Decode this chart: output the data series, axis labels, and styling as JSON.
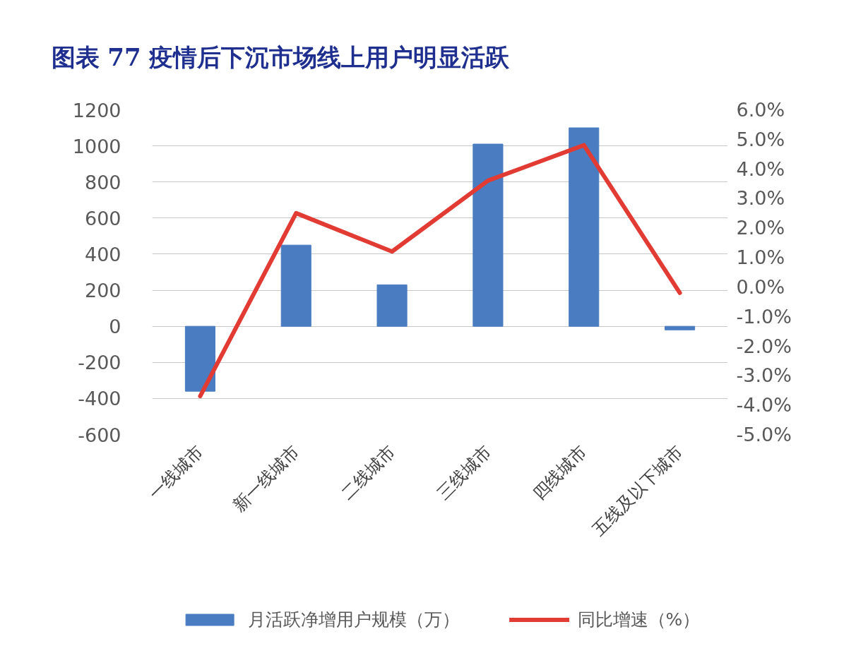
{
  "chart_data": {
    "type": "bar",
    "title": "图表 77 疫情后下沉市场线上用户明显活跃",
    "categories": [
      "一线城市",
      "新一线城市",
      "二线城市",
      "三线城市",
      "四线城市",
      "五线及以下城市"
    ],
    "series": [
      {
        "name": "月活跃净增用户规模（万）",
        "color": "#4a7cc1",
        "values": [
          -360,
          450,
          230,
          1010,
          1100,
          -20
        ]
      },
      {
        "name": "同比增速（%）",
        "type": "line",
        "axis": "y2",
        "color": "#e23b34",
        "values": [
          -3.7,
          2.5,
          1.2,
          3.6,
          4.8,
          -0.2
        ]
      }
    ],
    "ylim": [
      -600,
      1200
    ],
    "yticks": [
      -600,
      -400,
      -200,
      0,
      200,
      400,
      600,
      800,
      1000,
      1200
    ],
    "y2lim": [
      -5,
      6
    ],
    "y2ticks": [
      {
        "value": -5,
        "label": "-5.0%"
      },
      {
        "value": -4,
        "label": "-4.0%"
      },
      {
        "value": -3,
        "label": "-3.0%"
      },
      {
        "value": -2,
        "label": "-2.0%"
      },
      {
        "value": -1,
        "label": "-1.0%"
      },
      {
        "value": 0,
        "label": "0.0%"
      },
      {
        "value": 1,
        "label": "1.0%"
      },
      {
        "value": 2,
        "label": "2.0%"
      },
      {
        "value": 3,
        "label": "3.0%"
      },
      {
        "value": 4,
        "label": "4.0%"
      },
      {
        "value": 5,
        "label": "5.0%"
      },
      {
        "value": 6,
        "label": "6.0%"
      }
    ],
    "grid": "y",
    "legend": "bottom",
    "marker": "none",
    "line_style": "solid"
  }
}
